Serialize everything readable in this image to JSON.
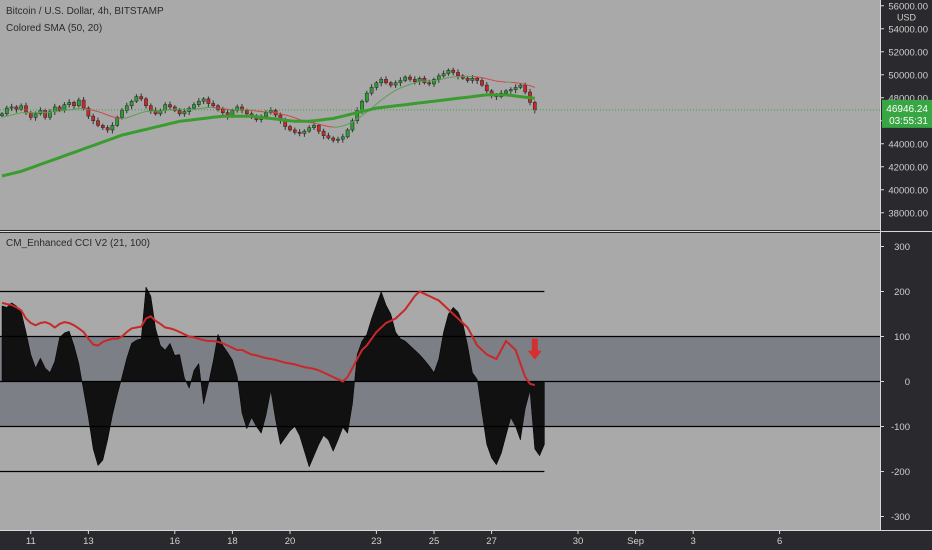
{
  "header": {
    "symbol": "Bitcoin / U.S. Dollar, 4h, BITSTAMP",
    "sma_label": "Colored SMA (50, 20)",
    "cci_label": "CM_Enhanced CCI V2 (21, 100)"
  },
  "price_badge": {
    "currency": "USD",
    "price": "46946.24",
    "countdown": "03:55:31"
  },
  "colors": {
    "background": "#a9a9a9",
    "band": "#7d7f87",
    "up_candle": "#2e9d36",
    "down_candle": "#c42a2a",
    "slow_sma": "#3a9c2f",
    "cci_fill": "#111111",
    "cci_line": "#c8282a",
    "badge": "#37a643"
  },
  "chart_data": [
    {
      "type": "candlestick",
      "title": "Bitcoin / U.S. Dollar, 4h, BITSTAMP",
      "ylim": [
        36500,
        56500
      ],
      "y_ticks": [
        "38000.00",
        "40000.00",
        "42000.00",
        "44000.00",
        "46000.00",
        "48000.00",
        "50000.00",
        "52000.00",
        "54000.00",
        "56000.00"
      ],
      "last_price": 46946.24,
      "close_series": [
        46600,
        47100,
        47200,
        47000,
        47300,
        46700,
        46300,
        46600,
        46900,
        46300,
        46800,
        47200,
        46900,
        47400,
        47600,
        47300,
        47800,
        47100,
        46400,
        46000,
        45600,
        45400,
        45200,
        45600,
        46300,
        46900,
        47300,
        47700,
        48100,
        47900,
        47300,
        46900,
        46600,
        46900,
        47400,
        47200,
        46900,
        46600,
        46800,
        47100,
        47400,
        47700,
        47900,
        47500,
        47300,
        47000,
        46700,
        46400,
        46900,
        47200,
        46900,
        46600,
        46300,
        46100,
        46400,
        46700,
        46900,
        46500,
        46000,
        45500,
        45200,
        45000,
        44900,
        45100,
        45400,
        45600,
        45100,
        44700,
        44500,
        44300,
        44400,
        44600,
        45200,
        46000,
        46900,
        47700,
        48400,
        48900,
        49300,
        49600,
        49300,
        49100,
        49300,
        49500,
        49800,
        49600,
        49400,
        49700,
        49300,
        49200,
        49600,
        49900,
        50100,
        50400,
        50200,
        49900,
        49700,
        49500,
        49700,
        49500,
        49100,
        48600,
        48200,
        48100,
        48400,
        48600,
        48700,
        48900,
        49100,
        48500,
        47600,
        46946
      ],
      "sma_slow": [
        41200,
        41300,
        41400,
        41500,
        41600,
        41750,
        41900,
        42050,
        42200,
        42350,
        42500,
        42650,
        42800,
        42950,
        43100,
        43250,
        43400,
        43550,
        43700,
        43850,
        44000,
        44150,
        44300,
        44450,
        44600,
        44750,
        44850,
        44950,
        45050,
        45150,
        45250,
        45350,
        45450,
        45550,
        45650,
        45750,
        45850,
        45950,
        46000,
        46050,
        46100,
        46150,
        46200,
        46250,
        46300,
        46350,
        46400,
        46400,
        46400,
        46400,
        46400,
        46400,
        46400,
        46350,
        46300,
        46250,
        46200,
        46150,
        46100,
        46050,
        46000,
        45950,
        45950,
        45950,
        45950,
        46000,
        46050,
        46100,
        46150,
        46200,
        46300,
        46400,
        46500,
        46600,
        46700,
        46800,
        46900,
        47000,
        47100,
        47150,
        47200,
        47250,
        47300,
        47350,
        47400,
        47450,
        47500,
        47550,
        47600,
        47650,
        47700,
        47750,
        47800,
        47850,
        47900,
        47950,
        48000,
        48050,
        48100,
        48150,
        48200,
        48250,
        48250,
        48250,
        48250,
        48250,
        48200,
        48150,
        48100,
        48050,
        48000,
        47950
      ],
      "sma_fast": [
        46300,
        46400,
        46500,
        46600,
        46700,
        46700,
        46700,
        46700,
        46700,
        46700,
        46750,
        46800,
        46850,
        46900,
        46950,
        47000,
        47050,
        47050,
        47000,
        46900,
        46800,
        46650,
        46500,
        46350,
        46250,
        46200,
        46250,
        46400,
        46550,
        46700,
        46800,
        46850,
        46850,
        46850,
        46900,
        46950,
        47000,
        47000,
        47000,
        47000,
        47000,
        47050,
        47100,
        47150,
        47150,
        47100,
        47050,
        47000,
        46950,
        46950,
        46950,
        46950,
        46900,
        46850,
        46800,
        46750,
        46750,
        46700,
        46600,
        46500,
        46400,
        46250,
        46100,
        45950,
        45850,
        45800,
        45700,
        45600,
        45500,
        45450,
        45450,
        45550,
        45700,
        45900,
        46150,
        46450,
        46750,
        47100,
        47450,
        47800,
        48100,
        48400,
        48650,
        48850,
        49000,
        49150,
        49300,
        49400,
        49450,
        49450,
        49500,
        49550,
        49650,
        49750,
        49800,
        49850,
        49850,
        49850,
        49850,
        49800,
        49750,
        49650,
        49550,
        49450,
        49400,
        49350,
        49350,
        49300,
        49250,
        49150,
        49050,
        48900
      ]
    },
    {
      "type": "area",
      "title": "CM_Enhanced CCI V2 (21, 100)",
      "ylim": [
        -330,
        330
      ],
      "y_ticks": [
        "300",
        "200",
        "100",
        "0",
        "-100",
        "-200",
        "-300"
      ],
      "levels": [
        200,
        100,
        0,
        -100,
        -200
      ],
      "cci": [
        168,
        165,
        175,
        168,
        155,
        110,
        60,
        30,
        52,
        30,
        20,
        45,
        98,
        108,
        112,
        80,
        40,
        -20,
        -80,
        -150,
        -187,
        -175,
        -130,
        -75,
        -30,
        10,
        52,
        85,
        92,
        95,
        210,
        190,
        118,
        80,
        70,
        85,
        58,
        60,
        8,
        -15,
        25,
        40,
        -50,
        -5,
        45,
        105,
        80,
        65,
        48,
        12,
        -70,
        -105,
        -80,
        -100,
        -115,
        -75,
        -20,
        -85,
        -140,
        -125,
        -110,
        -100,
        -120,
        -155,
        -190,
        -165,
        -140,
        -120,
        -130,
        -155,
        -130,
        -102,
        -115,
        -50,
        60,
        90,
        105,
        140,
        170,
        200,
        170,
        150,
        110,
        95,
        90,
        80,
        70,
        60,
        48,
        35,
        20,
        50,
        110,
        150,
        165,
        155,
        130,
        80,
        20,
        5,
        -70,
        -140,
        -170,
        -185,
        -160,
        -120,
        -80,
        -100,
        -130,
        -60,
        -20,
        -150,
        -165,
        -140
      ],
      "trend": [
        175,
        172,
        170,
        165,
        158,
        140,
        130,
        125,
        130,
        132,
        128,
        120,
        128,
        132,
        130,
        125,
        118,
        110,
        95,
        82,
        80,
        88,
        92,
        95,
        95,
        100,
        110,
        118,
        120,
        122,
        140,
        145,
        135,
        128,
        120,
        118,
        115,
        110,
        105,
        100,
        98,
        95,
        92,
        90,
        90,
        88,
        85,
        80,
        75,
        70,
        70,
        65,
        60,
        58,
        55,
        52,
        50,
        48,
        45,
        42,
        40,
        38,
        35,
        32,
        30,
        28,
        25,
        20,
        15,
        10,
        5,
        0,
        10,
        30,
        50,
        70,
        80,
        95,
        110,
        120,
        130,
        135,
        140,
        150,
        160,
        175,
        190,
        200,
        195,
        190,
        185,
        180,
        170,
        160,
        150,
        140,
        130,
        120,
        100,
        80,
        70,
        60,
        55,
        50,
        70,
        90,
        80,
        70,
        40,
        10,
        -5,
        -8
      ]
    }
  ],
  "x_axis": {
    "ticks": [
      {
        "label": "11",
        "t": 6
      },
      {
        "label": "13",
        "t": 18
      },
      {
        "label": "16",
        "t": 36
      },
      {
        "label": "18",
        "t": 48
      },
      {
        "label": "20",
        "t": 60
      },
      {
        "label": "23",
        "t": 78
      },
      {
        "label": "25",
        "t": 90
      },
      {
        "label": "27",
        "t": 102
      },
      {
        "label": "30",
        "t": 120
      },
      {
        "label": "Sep",
        "t": 132
      },
      {
        "label": "3",
        "t": 144
      },
      {
        "label": "6",
        "t": 162
      }
    ]
  }
}
